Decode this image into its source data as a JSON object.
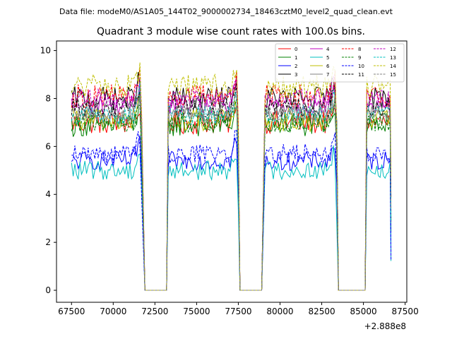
{
  "page_header": "Data file: modeM0/AS1A05_144T02_9000002734_18463cztM0_level2_quad_clean.evt",
  "chart_data": {
    "type": "line",
    "title": "Quadrant 3 module wise count rates with 100.0s bins.",
    "xlabel": "",
    "ylabel": "",
    "x_offset_label": "+2.888e8",
    "xlim": [
      66600,
      87600
    ],
    "ylim": [
      -0.5,
      10.4
    ],
    "x_ticks": [
      67500,
      70000,
      72500,
      75000,
      77500,
      80000,
      82500,
      85000,
      87500
    ],
    "y_ticks": [
      0,
      2,
      4,
      6,
      8,
      10
    ],
    "grid": false,
    "legend_position": "top-right",
    "segments": [
      [
        67500,
        71700
      ],
      [
        73300,
        77500
      ],
      [
        79100,
        83400
      ],
      [
        85200,
        86600
      ]
    ],
    "gap_x": [
      [
        71900,
        73200
      ],
      [
        77600,
        78900
      ],
      [
        83500,
        85100
      ]
    ],
    "series": [
      {
        "name": "0",
        "color": "#ff0000",
        "dash": "solid",
        "base": 7.0,
        "amp": 0.5
      },
      {
        "name": "1",
        "color": "#008000",
        "dash": "solid",
        "base": 6.9,
        "amp": 0.5
      },
      {
        "name": "2",
        "color": "#0000ff",
        "dash": "solid",
        "base": 5.4,
        "amp": 0.4
      },
      {
        "name": "3",
        "color": "#000000",
        "dash": "solid",
        "base": 8.0,
        "amp": 0.5
      },
      {
        "name": "4",
        "color": "#bf00bf",
        "dash": "solid",
        "base": 7.7,
        "amp": 0.4
      },
      {
        "name": "5",
        "color": "#00bfbf",
        "dash": "solid",
        "base": 5.0,
        "amp": 0.4
      },
      {
        "name": "6",
        "color": "#bfbf00",
        "dash": "solid",
        "base": 7.1,
        "amp": 0.5
      },
      {
        "name": "7",
        "color": "#808080",
        "dash": "solid",
        "base": 7.3,
        "amp": 0.4
      },
      {
        "name": "8",
        "color": "#ff0000",
        "dash": "dashed",
        "base": 8.1,
        "amp": 0.5
      },
      {
        "name": "9",
        "color": "#008000",
        "dash": "dashed",
        "base": 7.0,
        "amp": 0.4
      },
      {
        "name": "10",
        "color": "#0000ff",
        "dash": "dashed",
        "base": 5.7,
        "amp": 0.4
      },
      {
        "name": "11",
        "color": "#000000",
        "dash": "dashed",
        "base": 7.6,
        "amp": 0.4
      },
      {
        "name": "12",
        "color": "#bf00bf",
        "dash": "dashed",
        "base": 8.0,
        "amp": 0.4
      },
      {
        "name": "13",
        "color": "#00bfbf",
        "dash": "dashed",
        "base": 7.3,
        "amp": 0.4
      },
      {
        "name": "14",
        "color": "#bfbf00",
        "dash": "dashed",
        "base": 8.5,
        "amp": 0.5
      },
      {
        "name": "15",
        "color": "#808080",
        "dash": "dashed",
        "base": 7.5,
        "amp": 0.4
      }
    ]
  }
}
